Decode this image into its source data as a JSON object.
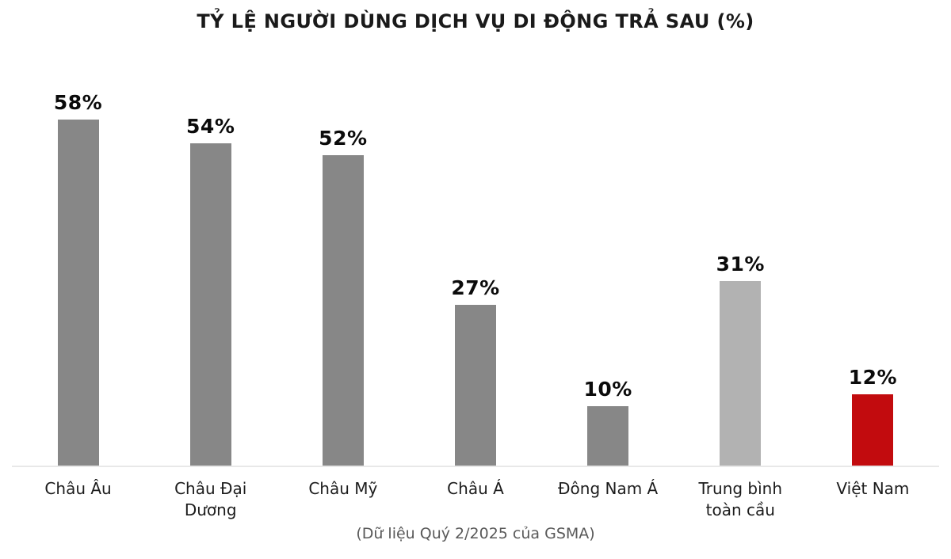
{
  "chart_data": {
    "type": "bar",
    "title": "TỶ LỆ NGƯỜI DÙNG DỊCH VỤ DI ĐỘNG TRẢ SAU (%)",
    "categories": [
      "Châu Âu",
      "Châu Đại Dương",
      "Châu Mỹ",
      "Châu Á",
      "Đông Nam Á",
      "Trung bình toàn cầu",
      "Việt Nam"
    ],
    "values": [
      58,
      54,
      52,
      27,
      10,
      31,
      12
    ],
    "value_labels": [
      "58%",
      "54%",
      "52%",
      "27%",
      "10%",
      "31%",
      "12%"
    ],
    "bar_colors": [
      "#878787",
      "#878787",
      "#878787",
      "#878787",
      "#878787",
      "#b2b2b2",
      "#c20b0e"
    ],
    "footnote": "(Dữ liệu Quý 2/2025 của GSMA)",
    "xlabel": "",
    "ylabel": "",
    "ylim": [
      0,
      60
    ],
    "grid": false,
    "legend": false,
    "colors": {
      "bar_default": "#878787",
      "bar_global_average": "#b2b2b2",
      "bar_vietnam_highlight": "#c20b0e",
      "axis_line": "#e8e8e8",
      "title_text": "#1a1a1a",
      "value_text": "#0b0b0b",
      "category_text": "#1c1c1c",
      "footnote_text": "#595959"
    }
  }
}
